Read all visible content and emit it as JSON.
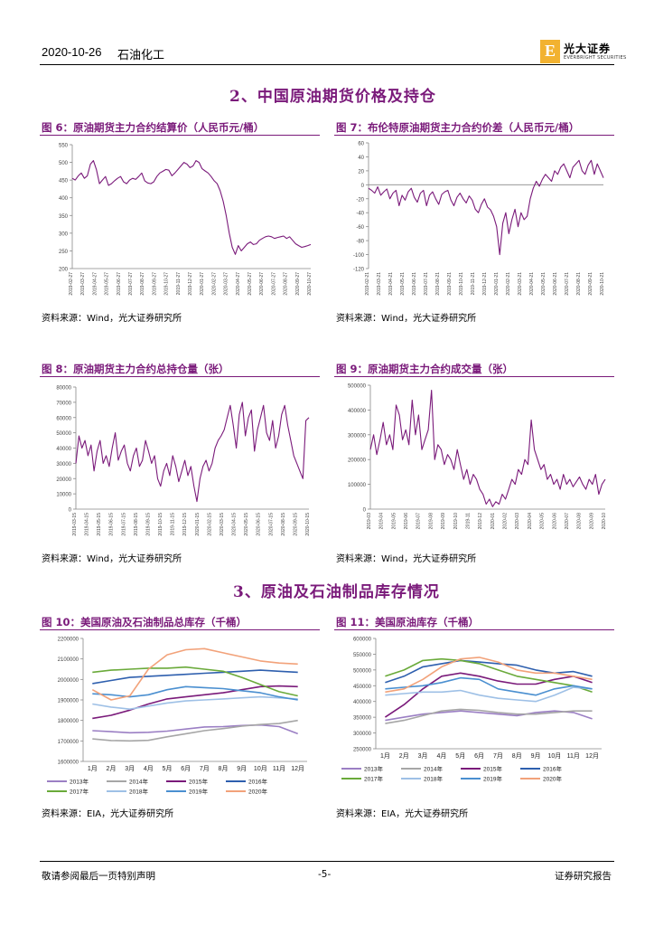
{
  "header": {
    "date": "2020-10-26",
    "sector": "石油化工",
    "logo_mark": "E",
    "logo_name": "光大证券",
    "logo_sub": "EVERBRIGHT SECURITIES"
  },
  "sections": [
    {
      "title": "2、中国原油期货价格及持仓"
    },
    {
      "title": "3、原油及石油制品库存情况"
    }
  ],
  "figures": {
    "fig6": {
      "title": "图 6：原油期货主力合约结算价（人民币元/桶）",
      "source": "资料来源：Wind，光大证券研究所"
    },
    "fig7": {
      "title": "图 7：布伦特原油期货主力合约价差（人民币元/桶）",
      "source": "资料来源：Wind，光大证券研究所"
    },
    "fig8": {
      "title": "图 8：原油期货主力合约总持仓量（张）",
      "source": "资料来源：Wind，光大证券研究所"
    },
    "fig9": {
      "title": "图 9：原油期货主力合约成交量（张）",
      "source": "资料来源：Wind，光大证券研究所"
    },
    "fig10": {
      "title": "图 10：美国原油及石油制品总库存（千桶）",
      "source": "资料来源：EIA，光大证券研究所"
    },
    "fig11": {
      "title": "图 11：美国原油库存（千桶）",
      "source": "资料来源：EIA，光大证券研究所"
    }
  },
  "footer": {
    "left": "敬请参阅最后一页特别声明",
    "center": "-5-",
    "right": "证券研究报告"
  },
  "colors": {
    "purple": "#7a1a7a",
    "y2013": "#9b7fc4",
    "y2014": "#a6a6a6",
    "y2015": "#7a1a7a",
    "y2016": "#2e5fae",
    "y2017": "#6aaa3a",
    "y2018": "#9ec0e6",
    "y2019": "#4a8fd0",
    "y2020": "#f2a27a"
  },
  "chart_data": [
    {
      "id": "fig6",
      "type": "line",
      "title": "原油期货主力合约结算价（人民币元/桶）",
      "yticks": [
        200,
        250,
        300,
        350,
        400,
        450,
        500,
        550
      ],
      "ylim": [
        200,
        550
      ],
      "xticks": [
        "2019-02-27",
        "2019-03-27",
        "2019-04-27",
        "2019-05-27",
        "2019-06-27",
        "2019-07-27",
        "2019-08-27",
        "2019-09-27",
        "2019-10-27",
        "2019-11-27",
        "2019-12-27",
        "2020-01-27",
        "2020-02-27",
        "2020-03-27",
        "2020-04-27",
        "2020-05-27",
        "2020-06-27",
        "2020-07-27",
        "2020-08-27",
        "2020-09-27",
        "2020-10-27"
      ],
      "series": [
        {
          "name": "结算价",
          "values": [
            455,
            450,
            462,
            470,
            455,
            462,
            495,
            505,
            480,
            440,
            450,
            460,
            435,
            440,
            448,
            455,
            460,
            445,
            440,
            450,
            455,
            452,
            460,
            470,
            448,
            442,
            440,
            445,
            460,
            470,
            475,
            480,
            478,
            462,
            470,
            480,
            490,
            500,
            495,
            485,
            490,
            505,
            500,
            482,
            476,
            470,
            460,
            448,
            440,
            420,
            390,
            350,
            300,
            260,
            240,
            265,
            250,
            260,
            270,
            275,
            268,
            270,
            280,
            285,
            290,
            292,
            290,
            285,
            288,
            290,
            292,
            285,
            290,
            280,
            270,
            265,
            260,
            262,
            265,
            268
          ]
        }
      ]
    },
    {
      "id": "fig7",
      "type": "line",
      "title": "布伦特原油期货主力合约价差（人民币元/桶）",
      "yticks": [
        -120,
        -100,
        -80,
        -60,
        -40,
        -20,
        0,
        20,
        40,
        60
      ],
      "ylim": [
        -120,
        60
      ],
      "xticks": [
        "2019-02-21",
        "2019-03-21",
        "2019-04-21",
        "2019-05-21",
        "2019-06-21",
        "2019-07-21",
        "2019-08-21",
        "2019-09-21",
        "2019-10-21",
        "2019-11-21",
        "2019-12-21",
        "2020-01-21",
        "2020-02-21",
        "2020-03-21",
        "2020-04-21",
        "2020-05-21",
        "2020-06-21",
        "2020-07-21",
        "2020-08-21",
        "2020-09-21",
        "2020-10-21"
      ],
      "series": [
        {
          "name": "价差",
          "values": [
            -5,
            -8,
            -12,
            -3,
            -15,
            -10,
            -6,
            -20,
            -12,
            -8,
            -30,
            -15,
            -22,
            -10,
            -5,
            -18,
            -25,
            -12,
            -8,
            -30,
            -15,
            -10,
            -20,
            -28,
            -14,
            -10,
            -8,
            -22,
            -30,
            -18,
            -12,
            -20,
            -26,
            -16,
            -22,
            -35,
            -40,
            -28,
            -20,
            -32,
            -36,
            -45,
            -60,
            -100,
            -55,
            -40,
            -70,
            -50,
            -35,
            -60,
            -40,
            -50,
            -45,
            -20,
            -5,
            5,
            -2,
            8,
            15,
            10,
            5,
            20,
            15,
            25,
            30,
            20,
            10,
            25,
            30,
            35,
            20,
            15,
            28,
            35,
            15,
            30,
            20,
            10
          ]
        }
      ]
    },
    {
      "id": "fig8",
      "type": "line",
      "title": "原油期货主力合约总持仓量（张）",
      "yticks": [
        0,
        10000,
        20000,
        30000,
        40000,
        50000,
        60000,
        70000,
        80000
      ],
      "ylim": [
        0,
        80000
      ],
      "xticks": [
        "2019-03-15",
        "2019-04-15",
        "2019-05-15",
        "2019-06-15",
        "2019-07-15",
        "2019-08-15",
        "2019-09-15",
        "2019-10-15",
        "2019-11-15",
        "2019-12-15",
        "2020-01-15",
        "2020-02-15",
        "2020-03-15",
        "2020-04-15",
        "2020-05-15",
        "2020-06-15",
        "2020-07-15",
        "2020-08-15",
        "2020-09-15",
        "2020-10-15"
      ],
      "series": [
        {
          "name": "持仓量",
          "values": [
            30000,
            48000,
            40000,
            45000,
            35000,
            42000,
            25000,
            38000,
            45000,
            30000,
            35000,
            28000,
            40000,
            50000,
            32000,
            38000,
            42000,
            30000,
            25000,
            35000,
            40000,
            28000,
            32000,
            45000,
            38000,
            30000,
            35000,
            20000,
            15000,
            25000,
            30000,
            22000,
            35000,
            28000,
            18000,
            25000,
            32000,
            22000,
            28000,
            15000,
            5000,
            20000,
            28000,
            32000,
            25000,
            30000,
            40000,
            45000,
            48000,
            52000,
            60000,
            68000,
            55000,
            40000,
            62000,
            70000,
            48000,
            60000,
            65000,
            38000,
            52000,
            60000,
            68000,
            50000,
            45000,
            58000,
            40000,
            48000,
            62000,
            68000,
            55000,
            45000,
            35000,
            30000,
            25000,
            20000,
            58000,
            60000
          ]
        }
      ]
    },
    {
      "id": "fig9",
      "type": "line",
      "title": "原油期货主力合约成交量（张）",
      "yticks": [
        0,
        100000,
        200000,
        300000,
        400000,
        500000
      ],
      "ylim": [
        0,
        500000
      ],
      "xticks": [
        "2019-03",
        "2019-04",
        "2019-05",
        "2019-06",
        "2019-07",
        "2019-08",
        "2019-09",
        "2019-10",
        "2019-11",
        "2019-12",
        "2020-01",
        "2020-02",
        "2020-03",
        "2020-04",
        "2020-05",
        "2020-06",
        "2020-07",
        "2020-08",
        "2020-09",
        "2020-10"
      ],
      "series": [
        {
          "name": "成交量",
          "values": [
            240000,
            300000,
            220000,
            280000,
            350000,
            260000,
            300000,
            240000,
            420000,
            380000,
            280000,
            320000,
            260000,
            440000,
            300000,
            380000,
            240000,
            280000,
            320000,
            480000,
            200000,
            260000,
            240000,
            180000,
            220000,
            200000,
            160000,
            240000,
            180000,
            120000,
            160000,
            100000,
            140000,
            120000,
            80000,
            60000,
            20000,
            40000,
            10000,
            30000,
            20000,
            60000,
            40000,
            80000,
            120000,
            100000,
            160000,
            140000,
            200000,
            180000,
            360000,
            240000,
            200000,
            160000,
            180000,
            120000,
            140000,
            100000,
            120000,
            80000,
            140000,
            100000,
            120000,
            90000,
            110000,
            130000,
            100000,
            80000,
            120000,
            100000,
            140000,
            60000,
            100000,
            120000
          ]
        }
      ]
    },
    {
      "id": "fig10",
      "type": "line",
      "title": "美国原油及石油制品总库存（千桶）",
      "yticks": [
        1600000,
        1700000,
        1800000,
        1900000,
        2000000,
        2100000,
        2200000
      ],
      "ylim": [
        1600000,
        2200000
      ],
      "xticks": [
        "1月",
        "2月",
        "3月",
        "4月",
        "5月",
        "6月",
        "7月",
        "8月",
        "9月",
        "10月",
        "11月",
        "12月"
      ],
      "series": [
        {
          "name": "2013年",
          "values": [
            1750000,
            1745000,
            1740000,
            1742000,
            1748000,
            1758000,
            1768000,
            1770000,
            1775000,
            1778000,
            1770000,
            1735000
          ]
        },
        {
          "name": "2014年",
          "values": [
            1710000,
            1702000,
            1700000,
            1703000,
            1720000,
            1735000,
            1750000,
            1760000,
            1772000,
            1780000,
            1785000,
            1800000
          ]
        },
        {
          "name": "2015年",
          "values": [
            1810000,
            1825000,
            1850000,
            1880000,
            1905000,
            1915000,
            1925000,
            1935000,
            1950000,
            1965000,
            1968000,
            1965000
          ]
        },
        {
          "name": "2016年",
          "values": [
            1980000,
            1995000,
            2010000,
            2015000,
            2020000,
            2025000,
            2030000,
            2035000,
            2040000,
            2045000,
            2040000,
            2035000
          ]
        },
        {
          "name": "2017年",
          "values": [
            2035000,
            2045000,
            2050000,
            2055000,
            2055000,
            2060000,
            2050000,
            2040000,
            2010000,
            1975000,
            1940000,
            1920000
          ]
        },
        {
          "name": "2018年",
          "values": [
            1880000,
            1865000,
            1855000,
            1870000,
            1885000,
            1895000,
            1900000,
            1905000,
            1910000,
            1915000,
            1910000,
            1905000
          ]
        },
        {
          "name": "2019年",
          "values": [
            1930000,
            1925000,
            1915000,
            1925000,
            1950000,
            1965000,
            1960000,
            1955000,
            1945000,
            1935000,
            1915000,
            1900000
          ]
        },
        {
          "name": "2020年",
          "values": [
            1950000,
            1900000,
            1920000,
            2050000,
            2120000,
            2145000,
            2150000,
            2130000,
            2110000,
            2090000,
            2080000,
            2075000
          ]
        }
      ],
      "legend": [
        "2013年",
        "2014年",
        "2015年",
        "2016年",
        "2017年",
        "2018年",
        "2019年",
        "2020年"
      ]
    },
    {
      "id": "fig11",
      "type": "line",
      "title": "美国原油库存（千桶）",
      "yticks": [
        250000,
        300000,
        350000,
        400000,
        450000,
        500000,
        550000,
        600000
      ],
      "ylim": [
        250000,
        600000
      ],
      "xticks": [
        "1月",
        "2月",
        "3月",
        "4月",
        "5月",
        "6月",
        "7月",
        "8月",
        "9月",
        "10月",
        "11月",
        "12月"
      ],
      "series": [
        {
          "name": "2013年",
          "values": [
            340000,
            350000,
            360000,
            365000,
            370000,
            365000,
            360000,
            355000,
            365000,
            370000,
            365000,
            345000
          ]
        },
        {
          "name": "2014年",
          "values": [
            330000,
            340000,
            355000,
            370000,
            375000,
            372000,
            365000,
            360000,
            360000,
            365000,
            370000,
            370000
          ]
        },
        {
          "name": "2015年",
          "values": [
            350000,
            390000,
            440000,
            480000,
            490000,
            480000,
            465000,
            455000,
            455000,
            470000,
            480000,
            460000
          ]
        },
        {
          "name": "2016年",
          "values": [
            460000,
            480000,
            510000,
            520000,
            530000,
            525000,
            520000,
            515000,
            500000,
            490000,
            495000,
            480000
          ]
        },
        {
          "name": "2017年",
          "values": [
            480000,
            500000,
            530000,
            535000,
            530000,
            520000,
            500000,
            480000,
            470000,
            460000,
            450000,
            430000
          ]
        },
        {
          "name": "2018年",
          "values": [
            420000,
            425000,
            430000,
            430000,
            435000,
            420000,
            410000,
            405000,
            400000,
            420000,
            445000,
            440000
          ]
        },
        {
          "name": "2019年",
          "values": [
            440000,
            445000,
            450000,
            460000,
            475000,
            470000,
            440000,
            430000,
            420000,
            440000,
            450000,
            440000
          ]
        },
        {
          "name": "2020年",
          "values": [
            430000,
            440000,
            470000,
            510000,
            535000,
            540000,
            525000,
            500000,
            490000,
            490000,
            480000,
            470000
          ]
        }
      ],
      "legend": [
        "2013年",
        "2014年",
        "2015年",
        "2016年",
        "2017年",
        "2018年",
        "2019年",
        "2020年"
      ]
    }
  ]
}
